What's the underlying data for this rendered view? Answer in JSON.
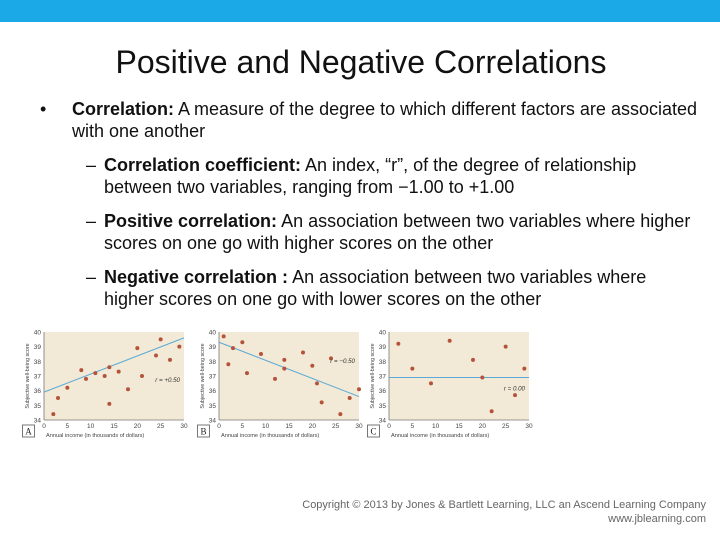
{
  "slide": {
    "title": "Positive and Negative Correlations",
    "bullet_symbol": "•",
    "dash_symbol": "–",
    "b1_term": "Correlation:",
    "b1_text": " A measure of the degree to which different factors are associated with one another",
    "sub": [
      {
        "term": "Correlation coefficient:",
        "text": " An index, “r”, of the degree of relationship between two variables, ranging from −1.00 to +1.00"
      },
      {
        "term": "Positive correlation:",
        "text": " An association between two variables where higher scores on one go with higher scores on the other"
      },
      {
        "term": "Negative correlation :",
        "text": " An association between two variables where higher scores on one go with lower scores on the other"
      }
    ],
    "copyright_line1": "Copyright © 2013 by Jones & Bartlett Learning, LLC an Ascend Learning Company",
    "copyright_line2": "www.jblearning.com"
  },
  "colors": {
    "topbar": "#1ba9e8",
    "background": "#f2ead7",
    "point": "#b5533a",
    "trend": "#5aa9d6"
  },
  "chart_data": [
    {
      "type": "scatter",
      "panel_label": "A",
      "xlabel": "Annual income (in thousands of dollars)",
      "ylabel": "Subjective well-being score",
      "xlim": [
        0,
        30
      ],
      "ylim": [
        34,
        40
      ],
      "xticks": [
        "0",
        "5",
        "10",
        "15",
        "20",
        "25",
        "30"
      ],
      "yticks": [
        "34",
        "35",
        "36",
        "37",
        "38",
        "39",
        "40"
      ],
      "r_label": "r = +0.50",
      "trend": [
        [
          0,
          35.9
        ],
        [
          30,
          39.6
        ]
      ],
      "points": [
        [
          2,
          34.4
        ],
        [
          3,
          35.5
        ],
        [
          5,
          36.2
        ],
        [
          8,
          37.4
        ],
        [
          9,
          36.8
        ],
        [
          11,
          37.2
        ],
        [
          13,
          37.0
        ],
        [
          14,
          37.6
        ],
        [
          14,
          35.1
        ],
        [
          16,
          37.3
        ],
        [
          18,
          36.1
        ],
        [
          20,
          38.9
        ],
        [
          21,
          37.0
        ],
        [
          24,
          38.4
        ],
        [
          25,
          39.5
        ],
        [
          27,
          38.1
        ],
        [
          29,
          39.0
        ]
      ]
    },
    {
      "type": "scatter",
      "panel_label": "B",
      "xlabel": "Annual income (in thousands of dollars)",
      "ylabel": "Subjective well-being score",
      "xlim": [
        0,
        30
      ],
      "ylim": [
        34,
        40
      ],
      "xticks": [
        "0",
        "5",
        "10",
        "15",
        "20",
        "25",
        "30"
      ],
      "yticks": [
        "34",
        "35",
        "36",
        "37",
        "38",
        "39",
        "40"
      ],
      "r_label": "r = −0.50",
      "trend": [
        [
          0,
          39.3
        ],
        [
          30,
          35.6
        ]
      ],
      "points": [
        [
          1,
          39.7
        ],
        [
          2,
          37.8
        ],
        [
          3,
          38.9
        ],
        [
          5,
          39.3
        ],
        [
          6,
          37.2
        ],
        [
          9,
          38.5
        ],
        [
          12,
          36.8
        ],
        [
          14,
          38.1
        ],
        [
          14,
          37.5
        ],
        [
          18,
          38.6
        ],
        [
          20,
          37.7
        ],
        [
          21,
          36.5
        ],
        [
          22,
          35.2
        ],
        [
          24,
          38.2
        ],
        [
          26,
          34.4
        ],
        [
          28,
          35.5
        ],
        [
          30,
          36.1
        ]
      ]
    },
    {
      "type": "scatter",
      "panel_label": "C",
      "xlabel": "Annual income (in thousands of dollars)",
      "ylabel": "Subjective well-being score",
      "xlim": [
        0,
        30
      ],
      "ylim": [
        34,
        40
      ],
      "xticks": [
        "0",
        "5",
        "10",
        "15",
        "20",
        "25",
        "30"
      ],
      "yticks": [
        "34",
        "35",
        "36",
        "37",
        "38",
        "39",
        "40"
      ],
      "r_label": "r = 0.00",
      "trend": [
        [
          0,
          36.9
        ],
        [
          30,
          36.9
        ]
      ],
      "points": [
        [
          2,
          39.2
        ],
        [
          5,
          37.5
        ],
        [
          9,
          36.5
        ],
        [
          13,
          39.4
        ],
        [
          18,
          38.1
        ],
        [
          20,
          36.9
        ],
        [
          22,
          34.6
        ],
        [
          25,
          39.0
        ],
        [
          27,
          35.7
        ],
        [
          29,
          37.5
        ]
      ]
    }
  ]
}
